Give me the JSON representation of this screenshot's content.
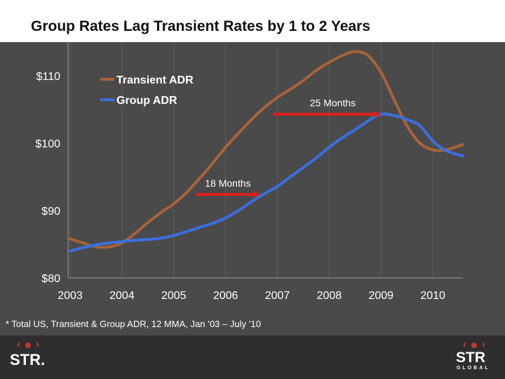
{
  "title": "Group Rates Lag Transient Rates by 1 to 2 Years",
  "footnote": "* Total US, Transient & Group ADR, 12 MMA, Jan ’03 – July ’10",
  "logo_left": "STR.",
  "logo_right": "STR",
  "logo_right_sub": "GLOBAL",
  "colors": {
    "background": "#4a4a4a",
    "transient": "#a8633a",
    "group": "#3b6fe0",
    "annotation_arrow": "#e0201c",
    "text": "#ffffff"
  },
  "chart_data": {
    "type": "line",
    "title": "Group Rates Lag Transient Rates by 1 to 2 Years",
    "xlabel": "",
    "ylabel": "",
    "xlim": [
      2003,
      2010.58
    ],
    "ylim": [
      80,
      115
    ],
    "x_ticks": [
      2003,
      2004,
      2005,
      2006,
      2007,
      2008,
      2009,
      2010
    ],
    "x_tick_labels": [
      "2003",
      "2004",
      "2005",
      "2006",
      "2007",
      "2008",
      "2009",
      "2010"
    ],
    "y_ticks": [
      80,
      90,
      100,
      110
    ],
    "y_tick_labels": [
      "$80",
      "$90",
      "$100",
      "$110"
    ],
    "legend_position": "top-left",
    "series": [
      {
        "name": "Transient ADR",
        "color": "#a8633a",
        "x": [
          2003.0,
          2003.25,
          2003.5,
          2003.75,
          2004.0,
          2004.25,
          2004.5,
          2004.75,
          2005.0,
          2005.25,
          2005.5,
          2005.75,
          2006.0,
          2006.25,
          2006.5,
          2006.75,
          2007.0,
          2007.25,
          2007.5,
          2007.75,
          2008.0,
          2008.25,
          2008.5,
          2008.75,
          2009.0,
          2009.25,
          2009.5,
          2009.75,
          2010.0,
          2010.25,
          2010.58
        ],
        "values": [
          85.8,
          85.2,
          84.6,
          84.6,
          85.2,
          86.6,
          88.2,
          89.7,
          91.0,
          92.7,
          94.8,
          97.0,
          99.4,
          101.5,
          103.5,
          105.3,
          106.8,
          108.0,
          109.3,
          110.8,
          112.0,
          113.0,
          113.6,
          113.0,
          110.5,
          106.5,
          102.6,
          100.0,
          99.0,
          99.0,
          99.8
        ]
      },
      {
        "name": "Group ADR",
        "color": "#3b6fe0",
        "x": [
          2003.0,
          2003.25,
          2003.5,
          2003.75,
          2004.0,
          2004.25,
          2004.5,
          2004.75,
          2005.0,
          2005.25,
          2005.5,
          2005.75,
          2006.0,
          2006.25,
          2006.5,
          2006.75,
          2007.0,
          2007.25,
          2007.5,
          2007.75,
          2008.0,
          2008.25,
          2008.5,
          2008.75,
          2009.0,
          2009.25,
          2009.5,
          2009.75,
          2010.0,
          2010.25,
          2010.58
        ],
        "values": [
          84.0,
          84.5,
          84.9,
          85.2,
          85.4,
          85.6,
          85.7,
          85.9,
          86.3,
          86.9,
          87.5,
          88.1,
          88.9,
          90.0,
          91.3,
          92.5,
          93.6,
          95.0,
          96.4,
          97.8,
          99.4,
          100.8,
          102.0,
          103.3,
          104.3,
          104.1,
          103.5,
          102.6,
          100.3,
          98.9,
          98.1
        ]
      }
    ],
    "annotations": [
      {
        "text": "25 Months",
        "x_start": 2006.92,
        "x_end": 2009.0,
        "y": 104.3
      },
      {
        "text": "18 Months",
        "x_start": 2005.42,
        "x_end": 2006.67,
        "y": 92.4
      }
    ]
  }
}
